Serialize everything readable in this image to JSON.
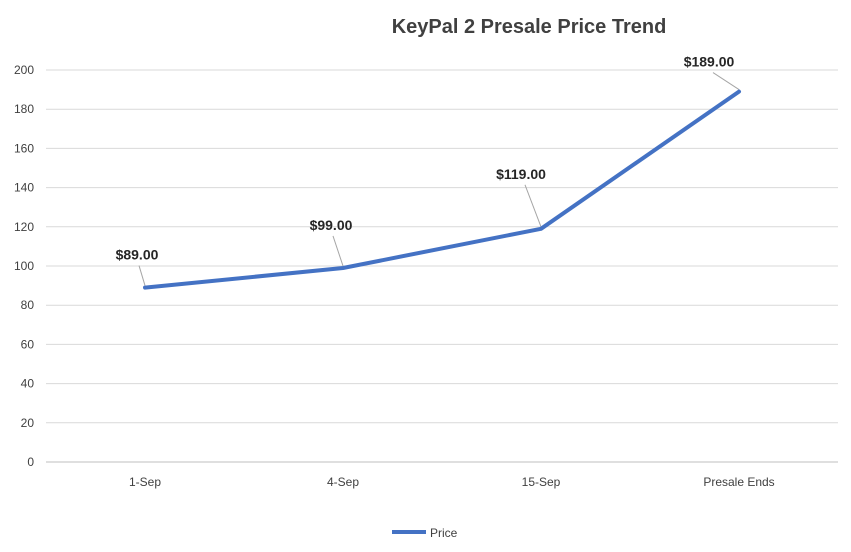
{
  "chart_data": {
    "type": "line",
    "title": "KeyPal 2 Presale Price Trend",
    "categories": [
      "1-Sep",
      "4-Sep",
      "15-Sep",
      "Presale Ends"
    ],
    "series": [
      {
        "name": "Price",
        "values": [
          89,
          99,
          119,
          189
        ],
        "color": "#4472C4"
      }
    ],
    "data_labels": [
      "$89.00",
      "$99.00",
      "$119.00",
      "$189.00"
    ],
    "ylim": [
      0,
      200
    ],
    "yticks": [
      0,
      20,
      40,
      60,
      80,
      100,
      120,
      140,
      160,
      180,
      200
    ],
    "grid": true,
    "legend": "bottom",
    "xlabel": "",
    "ylabel": ""
  }
}
